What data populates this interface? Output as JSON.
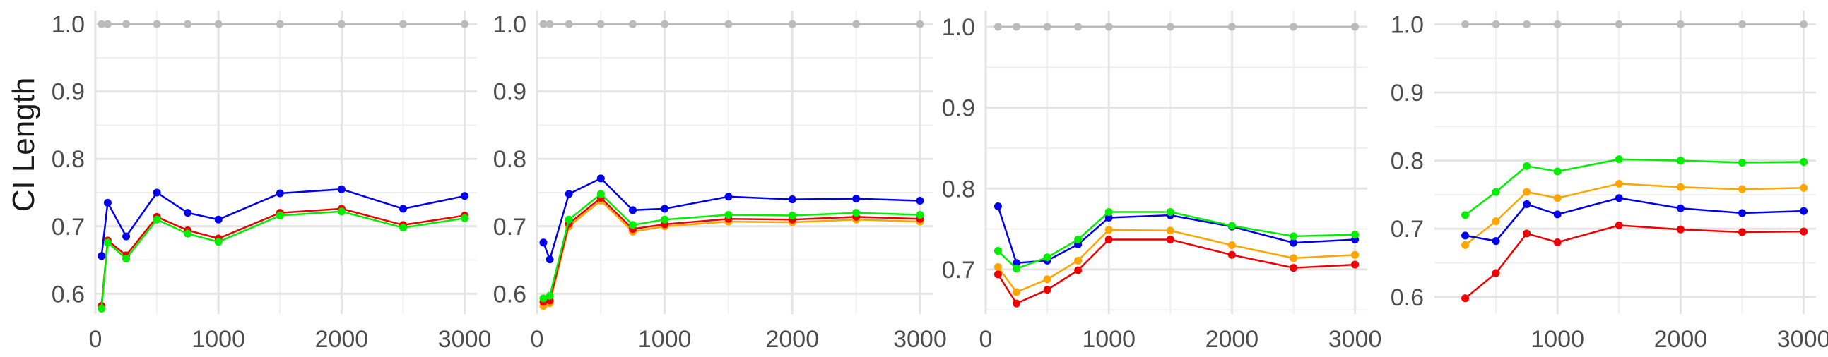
{
  "ylabel": "CI Length",
  "colors": {
    "gray": "#bbbbbb",
    "blue": "#0000ee",
    "red": "#ee0000",
    "green": "#00ee00",
    "orange": "#ffa500"
  },
  "chart_data": [
    {
      "type": "line",
      "xlim": [
        0,
        3100
      ],
      "ylim": [
        0.57,
        1.02
      ],
      "xticks": [
        0,
        1000,
        2000,
        3000
      ],
      "yticks": [
        0.6,
        0.7,
        0.8,
        0.9,
        1.0
      ],
      "ytick_labels": [
        "0.6",
        "0.7",
        "0.8",
        "0.9",
        "1.0"
      ],
      "xtick_labels": [
        "0",
        "1000",
        "2000",
        "3000"
      ],
      "grid": true,
      "series": [
        {
          "color": "gray",
          "x": [
            50,
            100,
            250,
            500,
            750,
            1000,
            1500,
            2000,
            2500,
            3000
          ],
          "y": [
            1.0,
            1.0,
            1.0,
            1.0,
            1.0,
            1.0,
            1.0,
            1.0,
            1.0,
            1.0
          ]
        },
        {
          "color": "blue",
          "x": [
            50,
            100,
            250,
            500,
            750,
            1000,
            1500,
            2000,
            2500,
            3000
          ],
          "y": [
            0.656,
            0.735,
            0.685,
            0.75,
            0.72,
            0.71,
            0.749,
            0.755,
            0.726,
            0.745
          ]
        },
        {
          "color": "red",
          "x": [
            50,
            100,
            250,
            500,
            750,
            1000,
            1500,
            2000,
            2500,
            3000
          ],
          "y": [
            0.582,
            0.679,
            0.657,
            0.714,
            0.694,
            0.682,
            0.72,
            0.726,
            0.702,
            0.716
          ]
        },
        {
          "color": "green",
          "x": [
            50,
            100,
            250,
            500,
            750,
            1000,
            1500,
            2000,
            2500,
            3000
          ],
          "y": [
            0.578,
            0.676,
            0.652,
            0.71,
            0.689,
            0.677,
            0.716,
            0.722,
            0.698,
            0.712
          ]
        }
      ]
    },
    {
      "type": "line",
      "xlim": [
        0,
        3100
      ],
      "ylim": [
        0.57,
        1.02
      ],
      "xticks": [
        0,
        1000,
        2000,
        3000
      ],
      "yticks": [
        0.6,
        0.7,
        0.8,
        0.9,
        1.0
      ],
      "ytick_labels": [
        "0.6",
        "0.7",
        "0.8",
        "0.9",
        "1.0"
      ],
      "xtick_labels": [
        "0",
        "1000",
        "2000",
        "3000"
      ],
      "grid": true,
      "series": [
        {
          "color": "gray",
          "x": [
            50,
            100,
            250,
            500,
            750,
            1000,
            1500,
            2000,
            2500,
            3000
          ],
          "y": [
            1.0,
            1.0,
            1.0,
            1.0,
            1.0,
            1.0,
            1.0,
            1.0,
            1.0,
            1.0
          ]
        },
        {
          "color": "blue",
          "x": [
            50,
            100,
            250,
            500,
            750,
            1000,
            1500,
            2000,
            2500,
            3000
          ],
          "y": [
            0.676,
            0.651,
            0.748,
            0.771,
            0.724,
            0.726,
            0.744,
            0.74,
            0.741,
            0.738
          ]
        },
        {
          "color": "orange",
          "x": [
            50,
            100,
            250,
            500,
            750,
            1000,
            1500,
            2000,
            2500,
            3000
          ],
          "y": [
            0.582,
            0.586,
            0.7,
            0.738,
            0.692,
            0.7,
            0.707,
            0.706,
            0.71,
            0.707
          ]
        },
        {
          "color": "red",
          "x": [
            50,
            100,
            250,
            500,
            750,
            1000,
            1500,
            2000,
            2500,
            3000
          ],
          "y": [
            0.588,
            0.59,
            0.704,
            0.742,
            0.696,
            0.703,
            0.711,
            0.71,
            0.714,
            0.711
          ]
        },
        {
          "color": "green",
          "x": [
            50,
            100,
            250,
            500,
            750,
            1000,
            1500,
            2000,
            2500,
            3000
          ],
          "y": [
            0.593,
            0.597,
            0.71,
            0.748,
            0.702,
            0.71,
            0.717,
            0.716,
            0.72,
            0.717
          ]
        }
      ]
    },
    {
      "type": "line",
      "xlim": [
        0,
        3100
      ],
      "ylim": [
        0.645,
        1.02
      ],
      "xticks": [
        0,
        1000,
        2000,
        3000
      ],
      "yticks": [
        0.7,
        0.8,
        0.9,
        1.0
      ],
      "ytick_labels": [
        "0.7",
        "0.8",
        "0.9",
        "1.0"
      ],
      "xtick_labels": [
        "0",
        "1000",
        "2000",
        "3000"
      ],
      "grid": true,
      "series": [
        {
          "color": "gray",
          "x": [
            100,
            250,
            500,
            750,
            1000,
            1500,
            2000,
            2500,
            3000
          ],
          "y": [
            1.0,
            1.0,
            1.0,
            1.0,
            1.0,
            1.0,
            1.0,
            1.0,
            1.0
          ]
        },
        {
          "color": "blue",
          "x": [
            100,
            250,
            500,
            750,
            1000,
            1500,
            2000,
            2500,
            3000
          ],
          "y": [
            0.778,
            0.708,
            0.711,
            0.731,
            0.764,
            0.767,
            0.753,
            0.733,
            0.737
          ]
        },
        {
          "color": "green",
          "x": [
            100,
            250,
            500,
            750,
            1000,
            1500,
            2000,
            2500,
            3000
          ],
          "y": [
            0.723,
            0.701,
            0.715,
            0.737,
            0.771,
            0.771,
            0.754,
            0.741,
            0.743
          ]
        },
        {
          "color": "orange",
          "x": [
            100,
            250,
            500,
            750,
            1000,
            1500,
            2000,
            2500,
            3000
          ],
          "y": [
            0.703,
            0.672,
            0.688,
            0.711,
            0.749,
            0.748,
            0.73,
            0.714,
            0.718
          ]
        },
        {
          "color": "red",
          "x": [
            100,
            250,
            500,
            750,
            1000,
            1500,
            2000,
            2500,
            3000
          ],
          "y": [
            0.694,
            0.658,
            0.675,
            0.699,
            0.737,
            0.737,
            0.718,
            0.702,
            0.706
          ]
        }
      ]
    },
    {
      "type": "line",
      "xlim": [
        0,
        3100
      ],
      "ylim": [
        0.575,
        1.02
      ],
      "xticks": [
        1000,
        2000,
        3000
      ],
      "yticks": [
        0.6,
        0.7,
        0.8,
        0.9,
        1.0
      ],
      "ytick_labels": [
        "0.6",
        "0.7",
        "0.8",
        "0.9",
        "1.0"
      ],
      "xtick_labels": [
        "1000",
        "2000",
        "3000"
      ],
      "grid": true,
      "series": [
        {
          "color": "gray",
          "x": [
            250,
            500,
            750,
            1000,
            1500,
            2000,
            2500,
            3000
          ],
          "y": [
            1.0,
            1.0,
            1.0,
            1.0,
            1.0,
            1.0,
            1.0,
            1.0
          ]
        },
        {
          "color": "green",
          "x": [
            250,
            500,
            750,
            1000,
            1500,
            2000,
            2500,
            3000
          ],
          "y": [
            0.72,
            0.754,
            0.792,
            0.784,
            0.802,
            0.8,
            0.797,
            0.798
          ]
        },
        {
          "color": "orange",
          "x": [
            250,
            500,
            750,
            1000,
            1500,
            2000,
            2500,
            3000
          ],
          "y": [
            0.676,
            0.711,
            0.754,
            0.745,
            0.766,
            0.761,
            0.758,
            0.76
          ]
        },
        {
          "color": "blue",
          "x": [
            250,
            500,
            750,
            1000,
            1500,
            2000,
            2500,
            3000
          ],
          "y": [
            0.69,
            0.682,
            0.736,
            0.721,
            0.745,
            0.73,
            0.723,
            0.726
          ]
        },
        {
          "color": "red",
          "x": [
            250,
            500,
            750,
            1000,
            1500,
            2000,
            2500,
            3000
          ],
          "y": [
            0.598,
            0.635,
            0.693,
            0.68,
            0.705,
            0.699,
            0.695,
            0.696
          ]
        }
      ]
    }
  ]
}
